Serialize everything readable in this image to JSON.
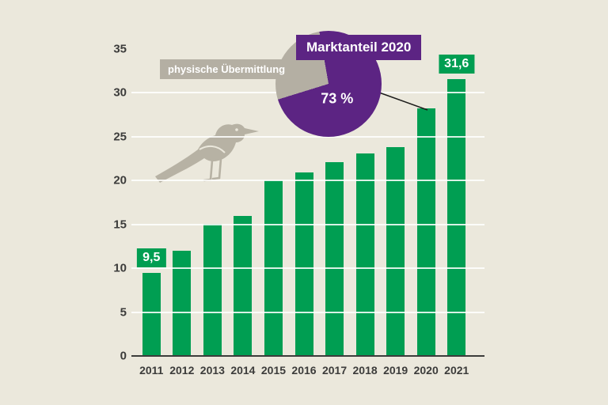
{
  "colors": {
    "background": "#ebe8dc",
    "bar_green": "#009e52",
    "pie_purple": "#5c2483",
    "pie_gray": "#b4afa3",
    "axis_text": "#3c3c3b",
    "grid_white": "#ffffff"
  },
  "chart_data": [
    {
      "type": "bar",
      "categories": [
        "2011",
        "2012",
        "2013",
        "2014",
        "2015",
        "2016",
        "2017",
        "2018",
        "2019",
        "2020",
        "2021"
      ],
      "values": [
        9.5,
        12.0,
        15.1,
        16.0,
        20.0,
        20.9,
        22.1,
        23.1,
        23.8,
        28.2,
        31.6
      ],
      "ylim": [
        0,
        35
      ],
      "yticks": [
        0,
        5,
        10,
        15,
        20,
        25,
        30,
        35
      ],
      "bar_color": "#009e52",
      "grid": true,
      "legend": "none",
      "value_labels": {
        "first": "9,5",
        "last": "31,6"
      }
    },
    {
      "type": "pie",
      "title": "Marktanteil 2020",
      "slices": [
        {
          "label": "73 %",
          "value": 73,
          "color": "#5c2483"
        },
        {
          "label": "physische Übermittlung",
          "value": 27,
          "color": "#b4afa3"
        }
      ],
      "callout_target": "2020"
    }
  ],
  "decor": {
    "bird": "magpie-silhouette-icon"
  }
}
